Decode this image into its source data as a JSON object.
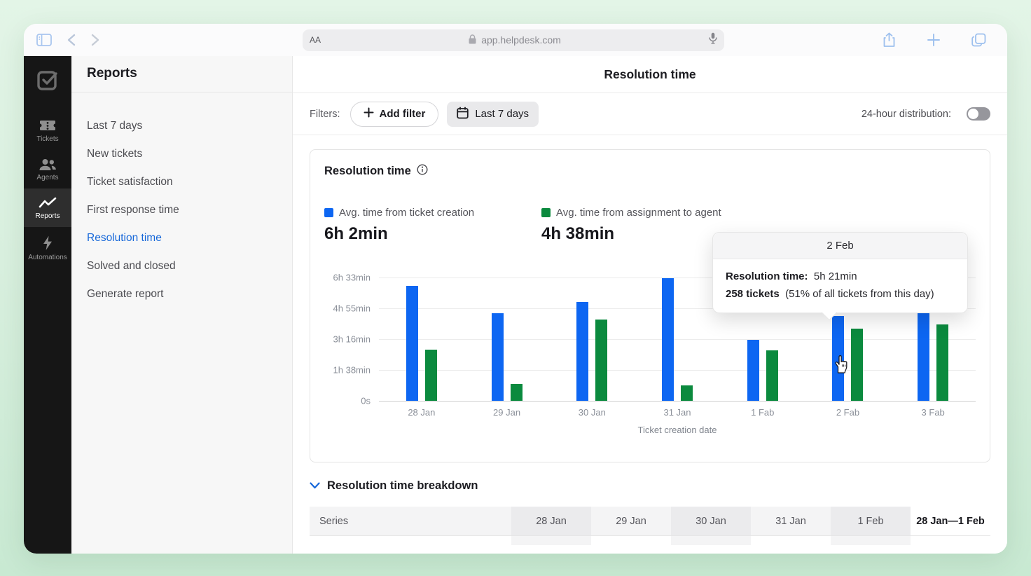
{
  "browser": {
    "text_size_label": "AA",
    "url": "app.helpdesk.com"
  },
  "sidebar": {
    "items": [
      {
        "label": "Tickets"
      },
      {
        "label": "Agents"
      },
      {
        "label": "Reports"
      },
      {
        "label": "Automations"
      }
    ]
  },
  "reports_panel": {
    "title": "Reports",
    "items": [
      "Last 7 days",
      "New tickets",
      "Ticket satisfaction",
      "First response time",
      "Resolution time",
      "Solved and closed",
      "Generate report"
    ],
    "active_item": "Resolution time"
  },
  "header": {
    "title": "Resolution time"
  },
  "filters": {
    "label": "Filters:",
    "add_filter_label": "Add filter",
    "date_chip_label": "Last 7 days",
    "toggle_label": "24-hour distribution:",
    "toggle_on": false
  },
  "chart_card": {
    "title": "Resolution time",
    "legend": [
      {
        "label": "Avg. time from ticket creation",
        "value": "6h 2min",
        "color": "#0d66f2"
      },
      {
        "label": "Avg. time from assignment to agent",
        "value": "4h 38min",
        "color": "#0b8a3e"
      }
    ]
  },
  "chart_data": {
    "type": "bar",
    "title": "Resolution time",
    "xlabel": "Ticket creation date",
    "ylabel": "",
    "categories": [
      "28 Jan",
      "29 Jan",
      "30 Jan",
      "31 Jan",
      "1 Fab",
      "2 Fab",
      "3 Fab"
    ],
    "series": [
      {
        "name": "Avg. time from ticket creation",
        "color": "#0d66f2",
        "values_minutes": [
          366,
          280,
          315,
          391,
          195,
          271,
          313
        ]
      },
      {
        "name": "Avg. time from assignment to agent",
        "color": "#0b8a3e",
        "values_minutes": [
          162,
          53,
          258,
          49,
          160,
          231,
          244
        ]
      }
    ],
    "y_ticks": [
      {
        "minutes": 393,
        "label": "6h 33min"
      },
      {
        "minutes": 295,
        "label": "4h 55min"
      },
      {
        "minutes": 196,
        "label": "3h 16min"
      },
      {
        "minutes": 98,
        "label": "1h 38min"
      },
      {
        "minutes": 0,
        "label": "0s"
      }
    ],
    "ylim_minutes": [
      0,
      393
    ],
    "grid": true,
    "legend_position": "top"
  },
  "tooltip": {
    "title": "2 Feb",
    "row1_label": "Resolution time:",
    "row1_value": "5h 21min",
    "row2_label": "258 tickets",
    "row2_value": "(51% of all tickets from this day)"
  },
  "breakdown": {
    "title": "Resolution time breakdown",
    "columns": [
      "Series",
      "28 Jan",
      "29 Jan",
      "30 Jan",
      "31 Jan",
      "1 Feb",
      "28 Jan—1 Feb"
    ]
  },
  "colors": {
    "accent_blue": "#1667d9",
    "bar_blue": "#0d66f2",
    "bar_green": "#0b8a3e",
    "toggle_off": "#96969c"
  }
}
